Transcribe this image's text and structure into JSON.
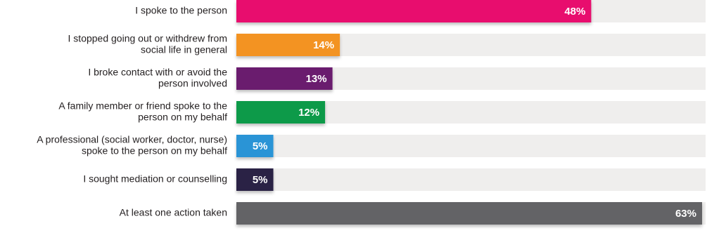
{
  "chart_data": {
    "type": "bar",
    "orientation": "horizontal",
    "categories": [
      [
        "I spoke to the person"
      ],
      [
        "I stopped going out or withdrew from",
        "social life in general"
      ],
      [
        "I broke contact with or avoid the",
        "person involved"
      ],
      [
        "A family member or friend spoke to the",
        "person on my behalf"
      ],
      [
        "A professional (social worker, doctor, nurse)",
        "spoke to the person on my behalf"
      ],
      [
        "I sought mediation or counselling"
      ],
      [
        "At least one action taken"
      ]
    ],
    "values": [
      48,
      14,
      13,
      12,
      5,
      5,
      63
    ],
    "value_labels": [
      "48%",
      "14%",
      "13%",
      "12%",
      "5%",
      "5%",
      "63%"
    ],
    "colors": [
      "#e8106e",
      "#f39323",
      "#6b1a6e",
      "#0f9a4a",
      "#2b94d6",
      "#2a2044",
      "#636466"
    ]
  }
}
